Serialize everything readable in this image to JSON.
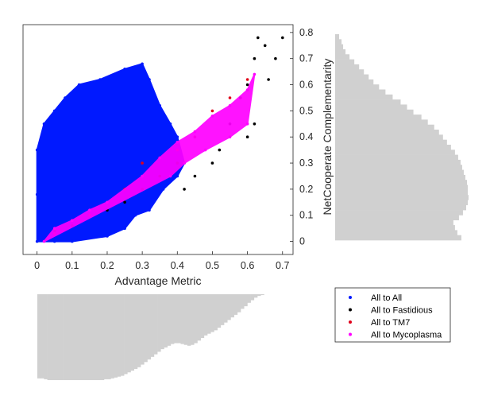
{
  "chart_data": [
    {
      "type": "scatter",
      "title": "",
      "xlabel": "Advantage Metric",
      "ylabel": "NetCooperate Complementarity",
      "xlim": [
        -0.04,
        0.73
      ],
      "ylim": [
        -0.05,
        0.83
      ],
      "xticks": [
        0,
        0.1,
        0.2,
        0.3,
        0.4,
        0.5,
        0.6,
        0.7
      ],
      "xticklabels": [
        "0",
        "0.1",
        "0.2",
        "0.3",
        "0.4",
        "0.5",
        "0.6",
        "0.7"
      ],
      "yticks": [
        0,
        0.1,
        0.2,
        0.3,
        0.4,
        0.5,
        0.6,
        0.7,
        0.8
      ],
      "yticklabels": [
        "0",
        "0.1",
        "0.2",
        "0.3",
        "0.4",
        "0.5",
        "0.6",
        "0.7",
        "0.8"
      ],
      "grid": false,
      "legend": "bottom-right, outside axes",
      "series": [
        {
          "name": "All to All",
          "color": "#0019ff",
          "shape": "dense point cloud",
          "points": [
            [
              0,
              0
            ],
            [
              0,
              0.18
            ],
            [
              0,
              0.35
            ],
            [
              0.02,
              0.45
            ],
            [
              0.05,
              0.5
            ],
            [
              0.08,
              0.55
            ],
            [
              0.12,
              0.6
            ],
            [
              0.18,
              0.62
            ],
            [
              0.25,
              0.66
            ],
            [
              0.3,
              0.68
            ],
            [
              0.32,
              0.62
            ],
            [
              0.35,
              0.52
            ],
            [
              0.38,
              0.45
            ],
            [
              0.4,
              0.4
            ],
            [
              0.42,
              0.3
            ],
            [
              0.4,
              0.25
            ],
            [
              0.36,
              0.2
            ],
            [
              0.32,
              0.12
            ],
            [
              0.28,
              0.1
            ],
            [
              0.25,
              0.05
            ],
            [
              0.2,
              0.02
            ],
            [
              0.1,
              0
            ],
            [
              0.05,
              0
            ]
          ]
        },
        {
          "name": "All to Fastidious",
          "color": "#000000",
          "shape": "sparse points along a rising band",
          "points": [
            [
              0.05,
              0.04
            ],
            [
              0.1,
              0.06
            ],
            [
              0.15,
              0.1
            ],
            [
              0.2,
              0.12
            ],
            [
              0.25,
              0.15
            ],
            [
              0.3,
              0.2
            ],
            [
              0.35,
              0.25
            ],
            [
              0.4,
              0.3
            ],
            [
              0.42,
              0.2
            ],
            [
              0.45,
              0.25
            ],
            [
              0.5,
              0.3
            ],
            [
              0.52,
              0.35
            ],
            [
              0.55,
              0.45
            ],
            [
              0.58,
              0.55
            ],
            [
              0.6,
              0.6
            ],
            [
              0.62,
              0.7
            ],
            [
              0.63,
              0.78
            ],
            [
              0.65,
              0.75
            ],
            [
              0.68,
              0.7
            ],
            [
              0.7,
              0.78
            ],
            [
              0.66,
              0.62
            ],
            [
              0.62,
              0.45
            ],
            [
              0.6,
              0.4
            ]
          ]
        },
        {
          "name": "All to TM7",
          "color": "#e0001a",
          "shape": "sparse points",
          "points": [
            [
              0.05,
              0.03
            ],
            [
              0.1,
              0.08
            ],
            [
              0.15,
              0.1
            ],
            [
              0.25,
              0.2
            ],
            [
              0.3,
              0.3
            ],
            [
              0.35,
              0.32
            ],
            [
              0.4,
              0.35
            ],
            [
              0.45,
              0.4
            ],
            [
              0.5,
              0.5
            ],
            [
              0.55,
              0.55
            ],
            [
              0.6,
              0.62
            ]
          ]
        },
        {
          "name": "All to Mycoplasma",
          "color": "#ff00ff",
          "shape": "dense band",
          "points": [
            [
              0.02,
              0
            ],
            [
              0.05,
              0.05
            ],
            [
              0.1,
              0.08
            ],
            [
              0.15,
              0.12
            ],
            [
              0.2,
              0.15
            ],
            [
              0.3,
              0.25
            ],
            [
              0.35,
              0.32
            ],
            [
              0.4,
              0.38
            ],
            [
              0.45,
              0.42
            ],
            [
              0.5,
              0.48
            ],
            [
              0.55,
              0.52
            ],
            [
              0.6,
              0.58
            ],
            [
              0.62,
              0.64
            ],
            [
              0.6,
              0.45
            ],
            [
              0.55,
              0.4
            ],
            [
              0.48,
              0.35
            ],
            [
              0.42,
              0.3
            ],
            [
              0.38,
              0.25
            ]
          ]
        }
      ]
    },
    {
      "type": "bar",
      "orientation": "horizontal",
      "description": "marginal distribution of NetCooperate Complementarity",
      "color": "#d0d0d0",
      "bins": [
        0.8,
        0.78,
        0.76,
        0.74,
        0.72,
        0.7,
        0.68,
        0.66,
        0.64,
        0.62,
        0.6,
        0.58,
        0.56,
        0.54,
        0.52,
        0.5,
        0.48,
        0.46,
        0.44,
        0.42,
        0.4,
        0.38,
        0.36,
        0.34,
        0.32,
        0.3,
        0.28,
        0.26,
        0.24,
        0.22,
        0.2,
        0.18,
        0.16,
        0.14,
        0.12,
        0.1,
        0.08,
        0.06,
        0.04,
        0.02,
        0
      ],
      "values": [
        5,
        8,
        10,
        13,
        18,
        24,
        30,
        36,
        42,
        48,
        55,
        63,
        72,
        82,
        90,
        98,
        108,
        116,
        124,
        130,
        135,
        140,
        145,
        150,
        154,
        157,
        159,
        161,
        163,
        165,
        166,
        166,
        167,
        166,
        164,
        160,
        155,
        148,
        150,
        153,
        158
      ]
    },
    {
      "type": "bar",
      "orientation": "vertical",
      "description": "marginal distribution of Advantage Metric",
      "color": "#d0d0d0",
      "bins": [
        0,
        0.01,
        0.02,
        0.03,
        0.04,
        0.05,
        0.06,
        0.07,
        0.08,
        0.09,
        0.1,
        0.11,
        0.12,
        0.13,
        0.14,
        0.15,
        0.16,
        0.17,
        0.18,
        0.19,
        0.2,
        0.21,
        0.22,
        0.23,
        0.24,
        0.25,
        0.26,
        0.27,
        0.28,
        0.29,
        0.3,
        0.31,
        0.32,
        0.33,
        0.34,
        0.35,
        0.36,
        0.37,
        0.38,
        0.39,
        0.4,
        0.41,
        0.42,
        0.43,
        0.44,
        0.45,
        0.46,
        0.47,
        0.48,
        0.49,
        0.5,
        0.51,
        0.52,
        0.53,
        0.54,
        0.55,
        0.56,
        0.57,
        0.58,
        0.59,
        0.6,
        0.61,
        0.62,
        0.63,
        0.64,
        0.65,
        0.66,
        0.67,
        0.68,
        0.69,
        0.7
      ],
      "values": [
        98,
        98,
        99,
        100,
        100,
        100,
        100,
        100,
        100,
        100,
        100,
        100,
        100,
        100,
        100,
        100,
        100,
        100,
        100,
        100,
        99,
        99,
        98,
        97,
        96,
        95,
        93,
        91,
        89,
        87,
        85,
        82,
        79,
        76,
        73,
        70,
        67,
        64,
        62,
        60,
        58,
        57,
        57,
        58,
        59,
        60,
        59,
        57,
        54,
        51,
        48,
        46,
        44,
        42,
        39,
        36,
        33,
        30,
        27,
        24,
        21,
        17,
        14,
        10,
        7,
        4,
        2,
        1,
        0,
        0,
        0
      ]
    }
  ],
  "legend": {
    "entries": [
      {
        "label": "All to All",
        "color": "#0019ff"
      },
      {
        "label": "All to Fastidious",
        "color": "#000000"
      },
      {
        "label": "All to TM7",
        "color": "#e0001a"
      },
      {
        "label": "All to Mycoplasma",
        "color": "#ff00ff"
      }
    ]
  }
}
